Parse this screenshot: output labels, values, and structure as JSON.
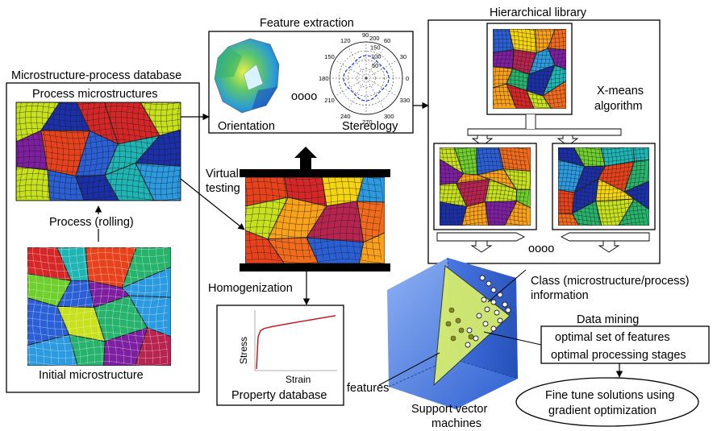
{
  "labels": {
    "database_title": "Microstructure-process database",
    "process_microstructures": "Process microstructures",
    "process_rolling": "Process (rolling)",
    "initial_microstructure": "Initial microstructure",
    "feature_extraction": "Feature extraction",
    "orientation": "Orientation",
    "stereology": "Stereology",
    "ellipsis": "oooo",
    "virtual_testing_1": "Virtual",
    "virtual_testing_2": "testing",
    "homogenization": "Homogenization",
    "property_database": "Property database",
    "stress": "Stress",
    "strain": "Strain",
    "hierarchical_library": "Hierarchical library",
    "xmeans_1": "X-means",
    "xmeans_2": "algorithm",
    "library_ellipsis": "oooo",
    "class_info_1": "Class (microstructure/process)",
    "class_info_2": "information",
    "data_mining": "Data mining",
    "optimal_features": "optimal set of features",
    "optimal_stages": "optimal processing stages",
    "fine_tune_1": "Fine tune solutions using",
    "fine_tune_2": "gradient optimization",
    "features": "features",
    "svm_1": "Support vector",
    "svm_2": "machines"
  },
  "polar_ticks": [
    "90",
    "60",
    "30",
    "0",
    "330",
    "300",
    "270",
    "240",
    "210",
    "180",
    "150",
    "120"
  ],
  "polar_radial": [
    "200",
    "150",
    "100",
    "50"
  ],
  "curve": {
    "x": [
      0,
      0.02,
      0.05,
      0.1,
      0.2,
      0.4,
      0.7,
      1.0
    ],
    "y": [
      0,
      0.55,
      0.66,
      0.7,
      0.73,
      0.78,
      0.85,
      0.92
    ]
  },
  "colors": {
    "grain_palette": [
      "#d62728",
      "#e8421c",
      "#f26b1d",
      "#f9a11b",
      "#f6d40f",
      "#c7e11d",
      "#6fcf2c",
      "#27b36b",
      "#1fb5b5",
      "#2c9ae0",
      "#2a5fd6",
      "#1b2fa8",
      "#7d1fa0",
      "#b82450"
    ],
    "svm_cube": "#3f78e0",
    "svm_plane": "#d9ef6a"
  }
}
